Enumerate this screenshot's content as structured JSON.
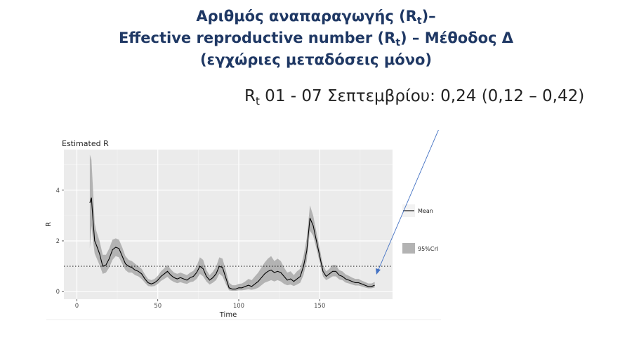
{
  "header": {
    "line1_pre": "Αριθμός αναπαραγωγής (R",
    "line1_sub": "t",
    "line1_post": ")–",
    "line2_pre": "Effective reproductive number (R",
    "line2_sub": "t",
    "line2_post": ") – Μέθοδος Δ",
    "line3": "(εγχώριες μεταδόσεις μόνο)"
  },
  "estimate": {
    "r": "R",
    "sub": "t",
    "text": " 01 - 07 Σεπτεμβρίου: 0,24 (0,12 – 0,42)"
  },
  "colors": {
    "title": "#1f3864",
    "panel": "#ebebeb",
    "ribbon": "#b3b3b3",
    "mean_line": "#000000",
    "arrow": "#4472c4"
  },
  "chart_data": {
    "type": "line",
    "title": "Estimated R",
    "xlabel": "Time",
    "ylabel": "R",
    "xlim": [
      -8,
      195
    ],
    "ylim": [
      -0.3,
      5.6
    ],
    "x_ticks": [
      0,
      50,
      100,
      150
    ],
    "y_ticks": [
      0,
      2,
      4
    ],
    "reference_line": {
      "y": 1,
      "style": "dotted"
    },
    "grid": true,
    "legend_position": "right",
    "legend": [
      {
        "label": "Mean",
        "kind": "line"
      },
      {
        "label": "95%CrI",
        "kind": "band"
      }
    ],
    "series": [
      {
        "name": "Mean",
        "x": [
          8,
          9,
          10,
          11,
          12,
          14,
          16,
          18,
          20,
          22,
          24,
          26,
          28,
          30,
          32,
          34,
          36,
          38,
          40,
          42,
          44,
          46,
          48,
          50,
          52,
          54,
          56,
          58,
          60,
          62,
          64,
          66,
          68,
          70,
          72,
          74,
          76,
          78,
          80,
          82,
          84,
          86,
          88,
          90,
          92,
          94,
          96,
          98,
          100,
          102,
          104,
          106,
          108,
          110,
          112,
          114,
          116,
          118,
          120,
          122,
          124,
          126,
          128,
          130,
          132,
          134,
          136,
          138,
          140,
          142,
          144,
          146,
          148,
          150,
          152,
          154,
          156,
          158,
          160,
          162,
          164,
          166,
          168,
          170,
          172,
          174,
          176,
          178,
          180,
          182,
          184
        ],
        "mean": [
          3.5,
          3.7,
          2.8,
          2.0,
          1.85,
          1.5,
          1.0,
          1.05,
          1.3,
          1.65,
          1.75,
          1.7,
          1.4,
          1.1,
          1.0,
          0.95,
          0.85,
          0.8,
          0.7,
          0.5,
          0.35,
          0.3,
          0.35,
          0.45,
          0.6,
          0.7,
          0.8,
          0.65,
          0.55,
          0.5,
          0.55,
          0.5,
          0.45,
          0.55,
          0.6,
          0.75,
          1.0,
          0.9,
          0.6,
          0.45,
          0.55,
          0.7,
          1.0,
          0.95,
          0.55,
          0.15,
          0.1,
          0.1,
          0.15,
          0.15,
          0.2,
          0.25,
          0.2,
          0.3,
          0.4,
          0.55,
          0.7,
          0.8,
          0.85,
          0.75,
          0.8,
          0.75,
          0.6,
          0.45,
          0.5,
          0.4,
          0.5,
          0.6,
          1.0,
          1.6,
          2.9,
          2.6,
          2.0,
          1.4,
          0.8,
          0.6,
          0.7,
          0.8,
          0.8,
          0.65,
          0.6,
          0.5,
          0.45,
          0.4,
          0.35,
          0.35,
          0.3,
          0.25,
          0.2,
          0.2,
          0.25
        ],
        "lower": [
          1.7,
          2.6,
          2.0,
          1.5,
          1.35,
          1.05,
          0.7,
          0.75,
          0.95,
          1.25,
          1.4,
          1.35,
          1.1,
          0.85,
          0.75,
          0.75,
          0.65,
          0.6,
          0.5,
          0.35,
          0.22,
          0.2,
          0.22,
          0.3,
          0.42,
          0.5,
          0.58,
          0.45,
          0.38,
          0.33,
          0.37,
          0.33,
          0.3,
          0.37,
          0.4,
          0.5,
          0.7,
          0.6,
          0.4,
          0.28,
          0.35,
          0.45,
          0.7,
          0.6,
          0.3,
          0.05,
          0.03,
          0.03,
          0.05,
          0.05,
          0.07,
          0.09,
          0.07,
          0.1,
          0.15,
          0.25,
          0.35,
          0.4,
          0.45,
          0.4,
          0.45,
          0.4,
          0.3,
          0.25,
          0.28,
          0.22,
          0.28,
          0.35,
          0.65,
          1.2,
          2.4,
          2.2,
          1.7,
          1.15,
          0.6,
          0.45,
          0.52,
          0.6,
          0.6,
          0.48,
          0.45,
          0.36,
          0.32,
          0.28,
          0.24,
          0.24,
          0.2,
          0.16,
          0.13,
          0.13,
          0.16
        ],
        "upper": [
          5.4,
          5.2,
          4.0,
          2.7,
          2.4,
          2.0,
          1.45,
          1.45,
          1.7,
          2.05,
          2.1,
          2.05,
          1.75,
          1.4,
          1.25,
          1.2,
          1.1,
          1.0,
          0.9,
          0.68,
          0.5,
          0.45,
          0.5,
          0.62,
          0.8,
          0.92,
          1.05,
          0.88,
          0.75,
          0.7,
          0.75,
          0.7,
          0.65,
          0.75,
          0.82,
          1.0,
          1.35,
          1.25,
          0.85,
          0.65,
          0.78,
          0.98,
          1.35,
          1.3,
          0.85,
          0.35,
          0.25,
          0.25,
          0.3,
          0.32,
          0.4,
          0.5,
          0.45,
          0.6,
          0.75,
          0.95,
          1.15,
          1.3,
          1.4,
          1.2,
          1.3,
          1.2,
          0.95,
          0.75,
          0.8,
          0.65,
          0.8,
          0.9,
          1.4,
          2.1,
          3.4,
          3.0,
          2.35,
          1.7,
          1.05,
          0.8,
          0.9,
          1.05,
          1.05,
          0.85,
          0.8,
          0.68,
          0.62,
          0.55,
          0.5,
          0.5,
          0.43,
          0.38,
          0.32,
          0.32,
          0.38
        ]
      }
    ]
  }
}
